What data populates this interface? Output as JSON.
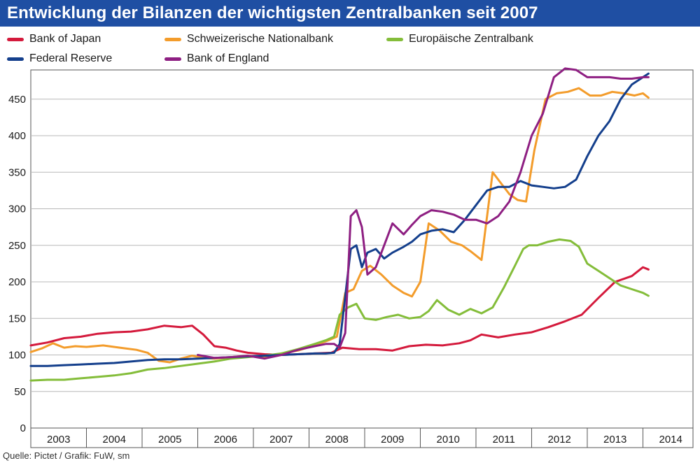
{
  "title": "Entwicklung der Bilanzen der wichtigsten Zentralbanken seit 2007",
  "source": "Quelle: Pictet / Grafik: FuW, sm",
  "chart_data": {
    "type": "line",
    "title": "Entwicklung der Bilanzen der wichtigsten Zentralbanken seit 2007",
    "xlabel": "",
    "ylabel": "",
    "ylim": [
      0,
      490
    ],
    "xlim": [
      2003.0,
      2014.9
    ],
    "y_ticks": [
      0,
      50,
      100,
      150,
      200,
      250,
      300,
      350,
      400,
      450
    ],
    "x_tick_labels": [
      "2003",
      "2004",
      "2005",
      "2006",
      "2007",
      "2008",
      "2009",
      "2010",
      "2011",
      "2012",
      "2013",
      "2014"
    ],
    "grid": "horizontal",
    "legend_position": "top",
    "series": [
      {
        "name": "Bank of Japan",
        "color": "#d41a3c",
        "x": [
          2003.0,
          2003.3,
          2003.6,
          2003.9,
          2004.2,
          2004.5,
          2004.8,
          2005.1,
          2005.4,
          2005.7,
          2005.9,
          2006.1,
          2006.3,
          2006.5,
          2006.7,
          2006.9,
          2007.2,
          2007.5,
          2007.8,
          2008.1,
          2008.4,
          2008.6,
          2008.9,
          2009.2,
          2009.5,
          2009.8,
          2010.1,
          2010.4,
          2010.7,
          2010.9,
          2011.1,
          2011.4,
          2011.7,
          2012.0,
          2012.3,
          2012.6,
          2012.9,
          2013.2,
          2013.5,
          2013.8,
          2014.0,
          2014.1
        ],
        "values": [
          113,
          117,
          123,
          125,
          129,
          131,
          132,
          135,
          140,
          138,
          140,
          128,
          112,
          110,
          106,
          103,
          101,
          100,
          101,
          102,
          103,
          110,
          108,
          108,
          106,
          112,
          114,
          113,
          116,
          120,
          128,
          124,
          128,
          131,
          138,
          146,
          155,
          178,
          200,
          208,
          220,
          217
        ]
      },
      {
        "name": "Schweizerische Nationalbank",
        "color": "#f39c2b",
        "x": [
          2003.0,
          2003.2,
          2003.4,
          2003.6,
          2003.8,
          2004.0,
          2004.3,
          2004.6,
          2004.9,
          2005.1,
          2005.3,
          2005.5,
          2005.7,
          2005.9,
          2006.1,
          2006.3,
          2006.6,
          2006.9,
          2007.2,
          2007.5,
          2007.8,
          2008.1,
          2008.35,
          2008.5,
          2008.65,
          2008.8,
          2008.95,
          2009.1,
          2009.3,
          2009.5,
          2009.7,
          2009.85,
          2010.0,
          2010.15,
          2010.35,
          2010.55,
          2010.75,
          2010.9,
          2011.1,
          2011.3,
          2011.45,
          2011.6,
          2011.75,
          2011.9,
          2012.05,
          2012.25,
          2012.45,
          2012.65,
          2012.85,
          2013.05,
          2013.25,
          2013.45,
          2013.65,
          2013.85,
          2014.0,
          2014.1
        ],
        "values": [
          104,
          109,
          116,
          110,
          112,
          111,
          113,
          110,
          107,
          103,
          92,
          90,
          95,
          99,
          96,
          95,
          97,
          99,
          96,
          102,
          106,
          113,
          120,
          125,
          185,
          190,
          215,
          222,
          210,
          195,
          185,
          180,
          200,
          280,
          270,
          255,
          250,
          242,
          230,
          350,
          335,
          320,
          312,
          310,
          380,
          450,
          458,
          460,
          465,
          455,
          455,
          460,
          458,
          455,
          458,
          452
        ]
      },
      {
        "name": "Europäische Zentralbank",
        "color": "#84bd3a",
        "x": [
          2003.0,
          2003.3,
          2003.6,
          2003.9,
          2004.2,
          2004.5,
          2004.8,
          2005.1,
          2005.4,
          2005.7,
          2006.0,
          2006.3,
          2006.6,
          2006.9,
          2007.2,
          2007.5,
          2007.8,
          2008.1,
          2008.3,
          2008.45,
          2008.55,
          2008.7,
          2008.85,
          2009.0,
          2009.2,
          2009.4,
          2009.6,
          2009.8,
          2010.0,
          2010.15,
          2010.3,
          2010.5,
          2010.7,
          2010.9,
          2011.1,
          2011.3,
          2011.5,
          2011.7,
          2011.85,
          2011.95,
          2012.1,
          2012.3,
          2012.5,
          2012.7,
          2012.85,
          2013.0,
          2013.2,
          2013.4,
          2013.6,
          2013.8,
          2014.0,
          2014.1
        ],
        "values": [
          65,
          66,
          66,
          68,
          70,
          72,
          75,
          80,
          82,
          85,
          88,
          91,
          95,
          97,
          99,
          102,
          108,
          115,
          120,
          125,
          155,
          165,
          170,
          150,
          148,
          152,
          155,
          150,
          152,
          160,
          175,
          162,
          155,
          163,
          157,
          165,
          192,
          222,
          245,
          250,
          250,
          255,
          258,
          256,
          248,
          225,
          215,
          205,
          195,
          190,
          185,
          181
        ]
      },
      {
        "name": "Federal Reserve",
        "color": "#143f8c",
        "x": [
          2003.0,
          2003.3,
          2003.6,
          2003.9,
          2004.2,
          2004.5,
          2004.8,
          2005.1,
          2005.4,
          2005.7,
          2006.0,
          2006.3,
          2006.6,
          2006.9,
          2007.2,
          2007.5,
          2007.8,
          2008.1,
          2008.3,
          2008.45,
          2008.55,
          2008.65,
          2008.75,
          2008.85,
          2008.95,
          2009.05,
          2009.2,
          2009.35,
          2009.5,
          2009.7,
          2009.85,
          2010.0,
          2010.2,
          2010.4,
          2010.6,
          2010.8,
          2011.0,
          2011.2,
          2011.4,
          2011.6,
          2011.8,
          2012.0,
          2012.2,
          2012.4,
          2012.6,
          2012.8,
          2013.0,
          2013.2,
          2013.4,
          2013.6,
          2013.8,
          2014.0,
          2014.1
        ],
        "values": [
          85,
          85,
          86,
          87,
          88,
          89,
          91,
          93,
          94,
          94,
          95,
          96,
          97,
          98,
          99,
          100,
          101,
          102,
          102,
          103,
          115,
          180,
          245,
          250,
          220,
          240,
          245,
          232,
          240,
          248,
          255,
          265,
          270,
          272,
          268,
          285,
          305,
          325,
          330,
          330,
          338,
          332,
          330,
          328,
          330,
          340,
          372,
          400,
          420,
          450,
          470,
          480,
          485
        ]
      },
      {
        "name": "Bank of England",
        "color": "#8e1f82",
        "x": [
          2006.0,
          2006.3,
          2006.6,
          2006.9,
          2007.2,
          2007.5,
          2007.8,
          2008.1,
          2008.3,
          2008.45,
          2008.55,
          2008.65,
          2008.75,
          2008.85,
          2008.95,
          2009.05,
          2009.2,
          2009.35,
          2009.5,
          2009.7,
          2009.85,
          2010.0,
          2010.2,
          2010.4,
          2010.6,
          2010.8,
          2011.0,
          2011.2,
          2011.4,
          2011.6,
          2011.8,
          2012.0,
          2012.2,
          2012.4,
          2012.6,
          2012.8,
          2013.0,
          2013.2,
          2013.4,
          2013.6,
          2013.8,
          2014.0,
          2014.1
        ],
        "values": [
          100,
          96,
          97,
          99,
          95,
          100,
          107,
          112,
          115,
          115,
          110,
          130,
          290,
          298,
          275,
          210,
          220,
          250,
          280,
          265,
          278,
          290,
          298,
          296,
          292,
          285,
          285,
          280,
          290,
          310,
          350,
          400,
          430,
          480,
          492,
          490,
          480,
          480,
          480,
          478,
          478,
          480,
          480
        ]
      }
    ]
  }
}
